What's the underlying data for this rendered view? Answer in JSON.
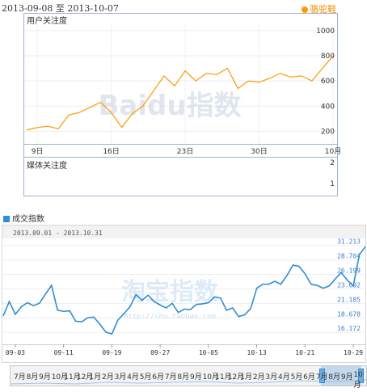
{
  "top": {
    "date_range": "2013-09-08 至 2013-10-07",
    "legend_label": "骆驼鞋",
    "legend_color": "#ff9900",
    "user_panel_label": "用户关注度",
    "media_panel_label": "媒体关注度",
    "watermark": "Baidu指数"
  },
  "bottom": {
    "legend_label": "成交指数",
    "legend_color": "#2e8ed6",
    "date_range": "2013.09.01 - 2013.10.31",
    "watermark": "淘宝指数",
    "watermark_url": "http://shu.taobao.com"
  },
  "zoom_bar": {
    "month_labels": [
      "7月",
      "8月",
      "9月",
      "10月",
      "11月",
      "12月",
      "1月",
      "2月",
      "3月",
      "4月",
      "5月",
      "6月",
      "7月",
      "8月",
      "9月",
      "10月",
      "11月",
      "12月",
      "1月",
      "2月",
      "3月",
      "4月",
      "5月",
      "6月",
      "7月",
      "8月",
      "9月",
      "10月"
    ]
  },
  "chart_data": [
    {
      "type": "line",
      "x_tick_labels": [
        "9日",
        "16日",
        "23日",
        "30日",
        "10月"
      ],
      "x": [
        "09-08",
        "09-09",
        "09-10",
        "09-11",
        "09-12",
        "09-13",
        "09-14",
        "09-15",
        "09-16",
        "09-17",
        "09-18",
        "09-19",
        "09-20",
        "09-21",
        "09-22",
        "09-23",
        "09-24",
        "09-25",
        "09-26",
        "09-27",
        "09-28",
        "09-29",
        "09-30",
        "10-01",
        "10-02",
        "10-03",
        "10-04",
        "10-05",
        "10-06",
        "10-07"
      ],
      "series": [
        {
          "name": "骆驼鞋",
          "color": "#ff9900",
          "values": [
            210,
            230,
            240,
            220,
            330,
            350,
            390,
            430,
            350,
            230,
            340,
            400,
            520,
            640,
            560,
            680,
            600,
            660,
            650,
            700,
            540,
            600,
            590,
            620,
            660,
            630,
            640,
            600,
            700,
            800
          ]
        }
      ],
      "y_tick_labels": [
        "1000",
        "800",
        "600",
        "400",
        "200"
      ],
      "ylim": [
        100,
        1050
      ],
      "grid": true
    },
    {
      "type": "line",
      "y_tick_labels": [
        "2",
        "1"
      ],
      "ylim": [
        0,
        2.5
      ],
      "series": []
    },
    {
      "type": "line",
      "x_tick_labels": [
        "09-03",
        "09-11",
        "09-19",
        "09-27",
        "10-05",
        "10-13",
        "10-21",
        "10-29"
      ],
      "x": [
        "09-01",
        "09-02",
        "09-03",
        "09-04",
        "09-05",
        "09-06",
        "09-07",
        "09-08",
        "09-09",
        "09-10",
        "09-11",
        "09-12",
        "09-13",
        "09-14",
        "09-15",
        "09-16",
        "09-17",
        "09-18",
        "09-19",
        "09-20",
        "09-21",
        "09-22",
        "09-23",
        "09-24",
        "09-25",
        "09-26",
        "09-27",
        "09-28",
        "09-29",
        "09-30",
        "10-01",
        "10-02",
        "10-03",
        "10-04",
        "10-05",
        "10-06",
        "10-07",
        "10-08",
        "10-09",
        "10-10",
        "10-11",
        "10-12",
        "10-13",
        "10-14",
        "10-15",
        "10-16",
        "10-17",
        "10-18",
        "10-19",
        "10-20",
        "10-21",
        "10-22",
        "10-23",
        "10-24",
        "10-25",
        "10-26",
        "10-27",
        "10-28",
        "10-29",
        "10-30",
        "10-31"
      ],
      "series": [
        {
          "name": "成交指数",
          "color": "#2e8ed6",
          "values": [
            19000,
            21500,
            19300,
            20600,
            21300,
            20800,
            21200,
            22800,
            24300,
            20000,
            19800,
            19900,
            18100,
            18000,
            18700,
            18800,
            17600,
            16200,
            15900,
            18300,
            19400,
            20600,
            22700,
            21700,
            22600,
            21500,
            20900,
            20400,
            21200,
            19600,
            20200,
            20100,
            21000,
            21100,
            21300,
            22300,
            22100,
            20000,
            20400,
            18900,
            19200,
            20300,
            23800,
            24500,
            24500,
            25000,
            24500,
            26000,
            27800,
            27600,
            26300,
            24500,
            24300,
            23800,
            24200,
            25400,
            26500,
            25200,
            24200,
            29600,
            31000
          ]
        }
      ],
      "y_tick_labels": [
        "31.213",
        "28.704",
        "26.199",
        "23.692",
        "21.185",
        "18.678",
        "16.172"
      ],
      "ylim": [
        14800,
        32000
      ],
      "grid": true
    }
  ]
}
